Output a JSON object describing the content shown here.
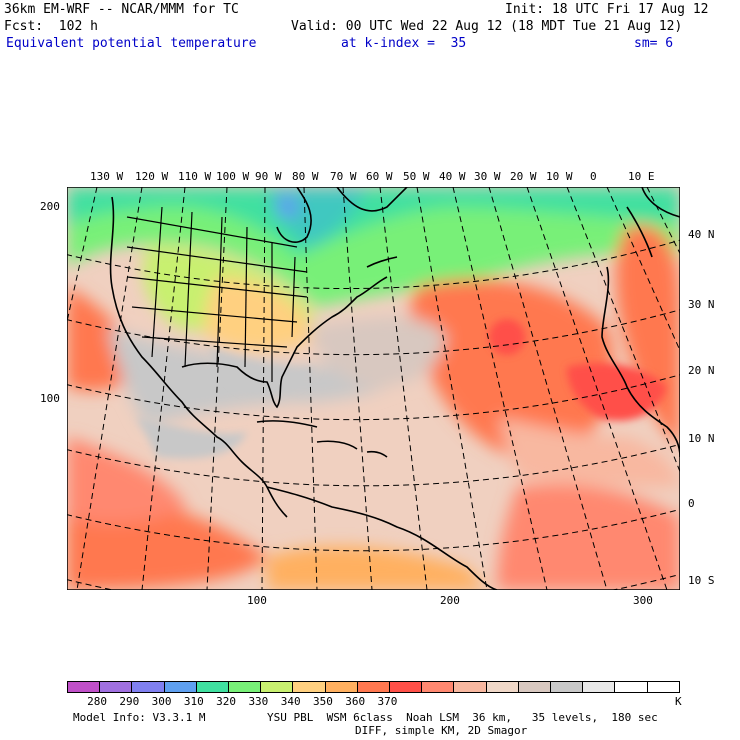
{
  "header": {
    "model": "36km EM-WRF -- NCAR/MMM for TC",
    "init": "Init: 18 UTC Fri 17 Aug 12",
    "fcst": "Fcst:  102 h",
    "valid": "Valid: 00 UTC Wed 22 Aug 12 (18 MDT Tue 21 Aug 12)",
    "field": "Equivalent potential temperature",
    "level": "at k-index =  35",
    "smoothing": "sm= 6"
  },
  "map": {
    "lon_labels": [
      "130 W",
      "120 W",
      "110 W",
      "100 W",
      "90 W",
      "80 W",
      "70 W",
      "60 W",
      "50 W",
      "40 W",
      "30 W",
      "20 W",
      "10 W",
      "0",
      "10 E"
    ],
    "lat_labels": [
      "40 N",
      "30 N",
      "20 N",
      "10 N",
      "0",
      "10 S"
    ],
    "grid_y_labels": [
      "200",
      "100"
    ],
    "grid_x_labels": [
      "100",
      "200",
      "300"
    ]
  },
  "colorbar": {
    "labels": [
      "280",
      "290",
      "300",
      "310",
      "320",
      "330",
      "340",
      "350",
      "360",
      "370"
    ],
    "unit": "K",
    "colors": [
      "#c050c8",
      "#a070e0",
      "#8080f0",
      "#5fa0f0",
      "#40e0a0",
      "#78f078",
      "#c8f070",
      "#ffd080",
      "#ffb060",
      "#ff7850",
      "#ff5048",
      "#ff8870",
      "#f8b8a0",
      "#f0d8c8",
      "#d8c8c0",
      "#c8c8c8",
      "#e8e8e8",
      "#ffffff",
      "#ffffff"
    ]
  },
  "footer": {
    "info": "Model Info: V3.3.1 M",
    "physics": "YSU PBL  WSM 6class  Noah LSM  36 km,   35 levels,  180 sec",
    "diff": "DIFF, simple KM, 2D Smagor"
  }
}
